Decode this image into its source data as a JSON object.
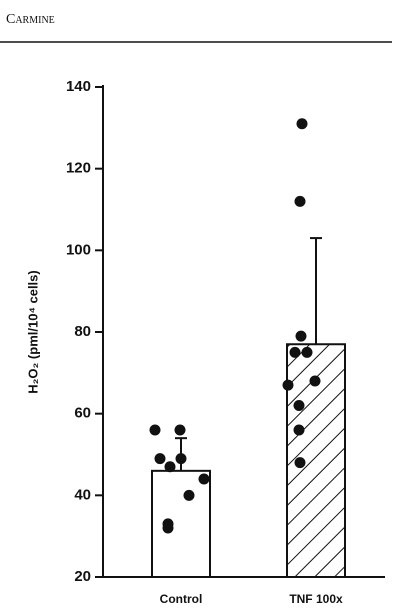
{
  "header": "Carmine",
  "chart_data": {
    "type": "bar",
    "categories": [
      "Control",
      "TNF 100x"
    ],
    "values": [
      46,
      77
    ],
    "errors": [
      8,
      26
    ],
    "points": [
      [
        56,
        56,
        49,
        49,
        47,
        44,
        40,
        33,
        32
      ],
      [
        131,
        112,
        79,
        75,
        75,
        68,
        67,
        62,
        56,
        48
      ]
    ],
    "hatch": [
      false,
      true
    ],
    "color": "#ffffff",
    "ylabel": "H₂O₂ (pml/10⁴ cells)",
    "ylim": [
      20,
      140
    ],
    "yticks": [
      20,
      40,
      60,
      80,
      100,
      120,
      140
    ]
  }
}
